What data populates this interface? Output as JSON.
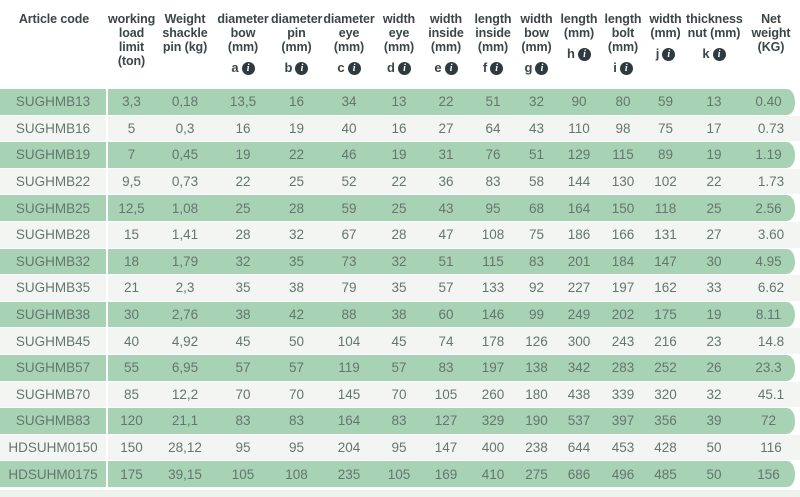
{
  "table": {
    "info_icon_glyph": "i",
    "columns": [
      {
        "label": "Article code"
      },
      {
        "label": "working\nload\nlimit\n(ton)"
      },
      {
        "label": "Weight\nshackle\npin (kg)"
      },
      {
        "label": "diameter\nbow\n(mm)",
        "letter": "a"
      },
      {
        "label": "diameter\npin (mm)",
        "letter": "b"
      },
      {
        "label": "diameter\neye (mm)",
        "letter": "c"
      },
      {
        "label": "width\neye\n(mm)",
        "letter": "d"
      },
      {
        "label": "width\ninside\n(mm)",
        "letter": "e"
      },
      {
        "label": "length\ninside\n(mm)",
        "letter": "f"
      },
      {
        "label": "width\nbow\n(mm)",
        "letter": "g"
      },
      {
        "label": "length\n(mm)",
        "letter": "h"
      },
      {
        "label": "length\nbolt\n(mm)",
        "letter": "i"
      },
      {
        "label": "width\n(mm)",
        "letter": "j"
      },
      {
        "label": "thickness\nnut (mm)",
        "letter": "k"
      },
      {
        "label": "Net\nweight\n(KG)"
      }
    ],
    "rows": [
      [
        "SUGHMB13",
        "3,3",
        "0,18",
        "13,5",
        "16",
        "34",
        "13",
        "22",
        "51",
        "32",
        "90",
        "80",
        "59",
        "13",
        "0.40"
      ],
      [
        "SUGHMB16",
        "5",
        "0,3",
        "16",
        "19",
        "40",
        "16",
        "27",
        "64",
        "43",
        "110",
        "98",
        "75",
        "17",
        "0.73"
      ],
      [
        "SUGHMB19",
        "7",
        "0,45",
        "19",
        "22",
        "46",
        "19",
        "31",
        "76",
        "51",
        "129",
        "115",
        "89",
        "19",
        "1.19"
      ],
      [
        "SUGHMB22",
        "9,5",
        "0,73",
        "22",
        "25",
        "52",
        "22",
        "36",
        "83",
        "58",
        "144",
        "130",
        "102",
        "22",
        "1.73"
      ],
      [
        "SUGHMB25",
        "12,5",
        "1,08",
        "25",
        "28",
        "59",
        "25",
        "43",
        "95",
        "68",
        "164",
        "150",
        "118",
        "25",
        "2.56"
      ],
      [
        "SUGHMB28",
        "15",
        "1,41",
        "28",
        "32",
        "67",
        "28",
        "47",
        "108",
        "75",
        "186",
        "166",
        "131",
        "27",
        "3.60"
      ],
      [
        "SUGHMB32",
        "18",
        "1,79",
        "32",
        "35",
        "73",
        "32",
        "51",
        "115",
        "83",
        "201",
        "184",
        "147",
        "30",
        "4.95"
      ],
      [
        "SUGHMB35",
        "21",
        "2,3",
        "35",
        "38",
        "79",
        "35",
        "57",
        "133",
        "92",
        "227",
        "197",
        "162",
        "33",
        "6.62"
      ],
      [
        "SUGHMB38",
        "30",
        "2,76",
        "38",
        "42",
        "88",
        "38",
        "60",
        "146",
        "99",
        "249",
        "202",
        "175",
        "19",
        "8.11"
      ],
      [
        "SUGHMB45",
        "40",
        "4,92",
        "45",
        "50",
        "104",
        "45",
        "74",
        "178",
        "126",
        "300",
        "243",
        "216",
        "23",
        "14.8"
      ],
      [
        "SUGHMB57",
        "55",
        "6,95",
        "57",
        "57",
        "119",
        "57",
        "83",
        "197",
        "138",
        "342",
        "283",
        "252",
        "26",
        "23.3"
      ],
      [
        "SUGHMB70",
        "85",
        "12,2",
        "70",
        "70",
        "145",
        "70",
        "105",
        "260",
        "180",
        "438",
        "339",
        "320",
        "32",
        "45.1"
      ],
      [
        "SUGHMB83",
        "120",
        "21,1",
        "83",
        "83",
        "164",
        "83",
        "127",
        "329",
        "190",
        "537",
        "397",
        "356",
        "39",
        "72"
      ],
      [
        "HDSUHM0150",
        "150",
        "28,12",
        "95",
        "95",
        "204",
        "95",
        "147",
        "400",
        "238",
        "644",
        "453",
        "428",
        "50",
        "116"
      ],
      [
        "HDSUHM0175",
        "175",
        "39,15",
        "105",
        "108",
        "235",
        "105",
        "169",
        "410",
        "275",
        "686",
        "496",
        "485",
        "50",
        "156"
      ]
    ]
  },
  "colors": {
    "row_green": "#a7d3b4",
    "row_light": "#f2f5f2",
    "header_text": "#3b4649",
    "cell_text": "#65756f",
    "info_badge": "#2e3a3f"
  }
}
